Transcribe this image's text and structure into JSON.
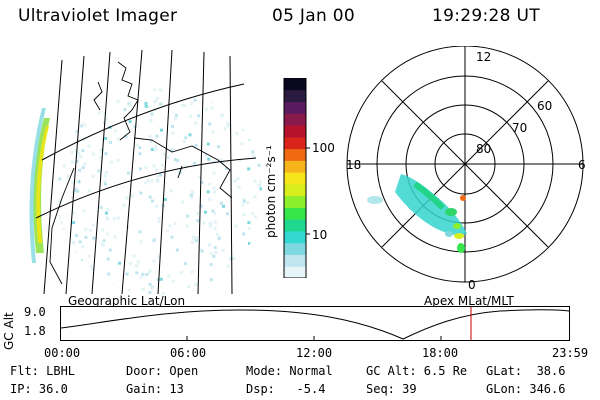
{
  "header": {
    "title": "Ultraviolet Imager",
    "date": "05 Jan 00",
    "time": "19:29:28 UT"
  },
  "colorbar": {
    "unit_label": "photon cm⁻²s⁻¹",
    "ticks": [
      "100",
      "10"
    ],
    "colors": [
      "#e6f6f8",
      "#bfe6ee",
      "#7fd8e0",
      "#33d6d0",
      "#1fd890",
      "#36e64a",
      "#8cef2a",
      "#d7ee1c",
      "#f6e51a",
      "#f7b41b",
      "#ef6a12",
      "#d8241a",
      "#b5122e",
      "#8a1a4a",
      "#5a1a60",
      "#2a1a40",
      "#0a0820"
    ]
  },
  "left_panel": {
    "caption": "Geographic Lat/Lon"
  },
  "right_panel": {
    "caption": "Apex MLat/MLT",
    "lat_labels": [
      "80",
      "70",
      "60"
    ],
    "mlt_labels": [
      "12",
      "18",
      "6",
      "0"
    ]
  },
  "timeline": {
    "axis_label": "GC Alt",
    "y_ticks": [
      "9.0",
      "1.8"
    ],
    "x_ticks": [
      "00:00",
      "06:00",
      "12:00",
      "18:00",
      "23:59"
    ],
    "marker_color": "#cc0000"
  },
  "info": {
    "flt": "Flt: LBHL",
    "door": "Door: Open",
    "mode": "Mode: Normal",
    "gc_alt": "GC Alt: 6.5 Re",
    "glat": "GLat:  38.6",
    "ip": "IP: 36.0",
    "gain": "Gain: 13",
    "dsp": "Dsp:   -5.4",
    "seq": "Seq: 39",
    "glon": "GLon: 346.6"
  }
}
